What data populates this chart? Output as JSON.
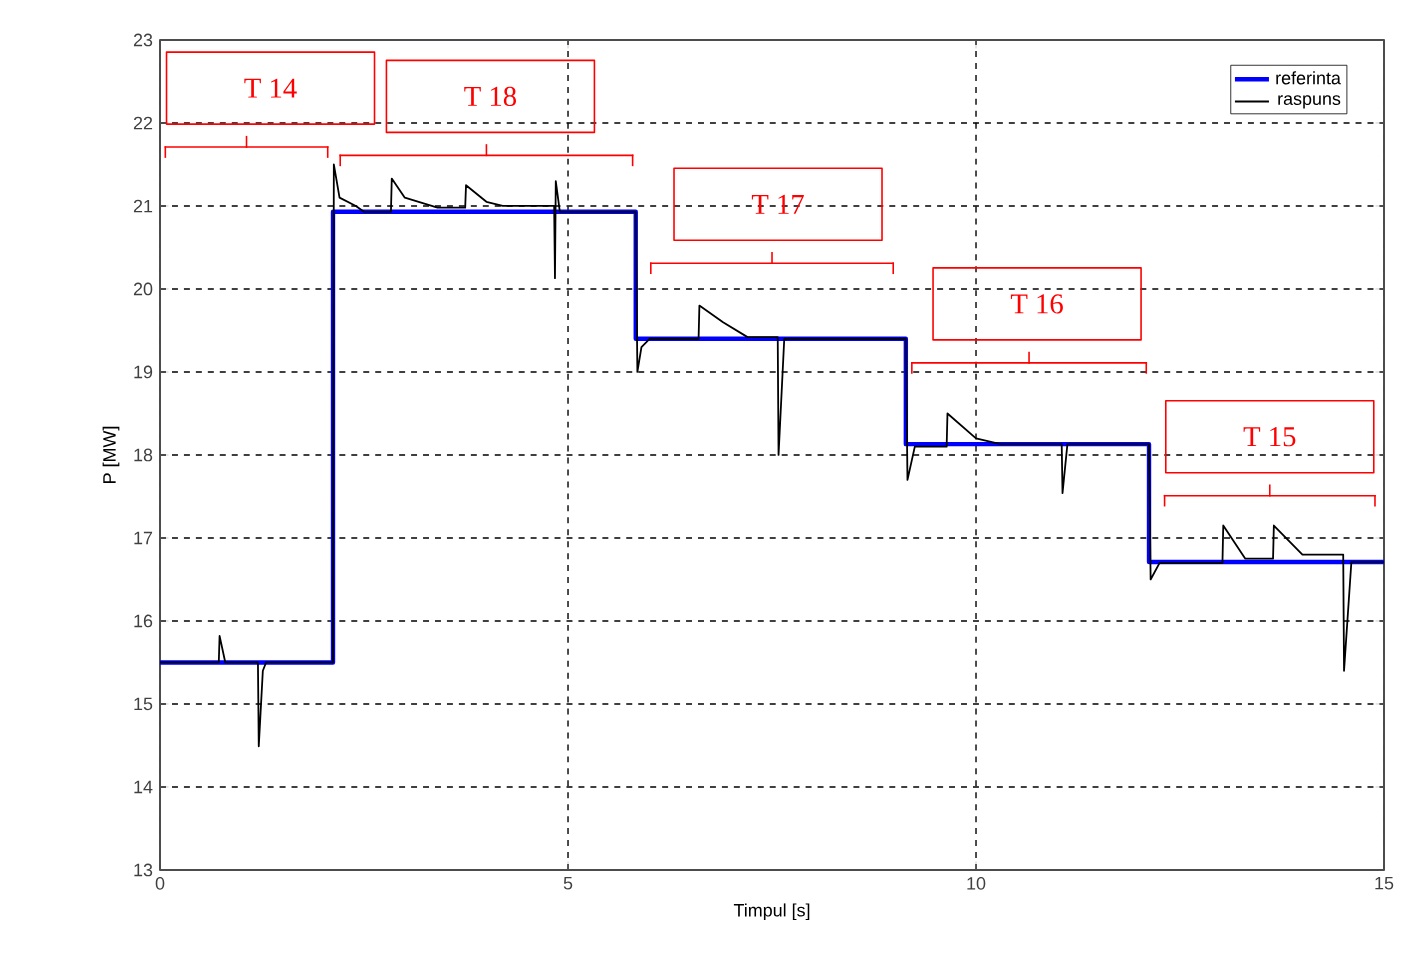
{
  "chart_data": {
    "type": "line",
    "xlabel": "Timpul [s]",
    "ylabel": "P [MW]",
    "xlim": [
      0,
      15
    ],
    "ylim": [
      13,
      23
    ],
    "xticks": [
      0,
      5,
      10,
      15
    ],
    "yticks": [
      13,
      14,
      15,
      16,
      17,
      18,
      19,
      20,
      21,
      22,
      23
    ],
    "grid": true,
    "legend": "top right",
    "marker": "none",
    "line_style": "solid",
    "series": [
      {
        "name": "referinta",
        "color": "#0000ff",
        "type": "step",
        "x": [
          0,
          2.12,
          5.83,
          9.14,
          12.12,
          15
        ],
        "values": [
          15.5,
          20.93,
          19.4,
          18.13,
          16.71,
          16.71
        ]
      },
      {
        "name": "raspuns",
        "color": "#000000",
        "x": [
          0,
          0.72,
          0.73,
          0.8,
          0.85,
          1.2,
          1.21,
          1.26,
          1.3,
          2.12,
          2.13,
          2.2,
          2.4,
          2.5,
          2.83,
          2.84,
          3.0,
          3.4,
          3.74,
          3.75,
          4.0,
          4.2,
          4.83,
          4.84,
          4.85,
          4.9,
          5.83,
          5.85,
          5.9,
          6.0,
          6.6,
          6.61,
          6.9,
          7.2,
          7.57,
          7.58,
          7.65,
          9.14,
          9.16,
          9.25,
          9.64,
          9.65,
          10.0,
          10.3,
          11.05,
          11.06,
          11.12,
          12.12,
          12.14,
          12.25,
          13.02,
          13.03,
          13.3,
          13.64,
          13.65,
          14.0,
          14.5,
          14.51,
          14.6,
          15
        ],
        "values": [
          15.5,
          15.5,
          15.82,
          15.5,
          15.5,
          15.5,
          14.49,
          15.4,
          15.5,
          15.5,
          21.5,
          21.1,
          21.0,
          20.93,
          20.93,
          21.33,
          21.1,
          20.98,
          20.98,
          21.25,
          21.05,
          21.0,
          21.0,
          20.13,
          21.3,
          20.93,
          20.93,
          19.0,
          19.3,
          19.4,
          19.4,
          19.8,
          19.6,
          19.42,
          19.42,
          18.0,
          19.4,
          19.4,
          17.7,
          18.1,
          18.1,
          18.5,
          18.2,
          18.13,
          18.13,
          17.54,
          18.13,
          18.13,
          16.5,
          16.7,
          16.7,
          17.15,
          16.75,
          16.75,
          17.15,
          16.8,
          16.8,
          15.4,
          16.71,
          16.71
        ]
      }
    ],
    "annotations": [
      "T 14",
      "T 18",
      "T 17",
      "T 16",
      "T 15"
    ]
  }
}
